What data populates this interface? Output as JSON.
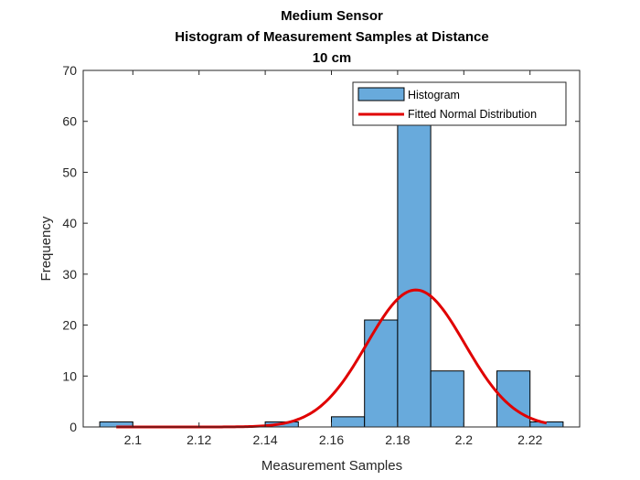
{
  "chart_data": {
    "type": "bar",
    "title": [
      "Medium Sensor",
      "Histogram of Measurement Samples at Distance",
      "10 cm"
    ],
    "xlabel": "Measurement Samples",
    "ylabel": "Frequency",
    "xlim": [
      2.085,
      2.235
    ],
    "ylim": [
      0,
      70
    ],
    "xticks": [
      2.1,
      2.12,
      2.14,
      2.16,
      2.18,
      2.2,
      2.22
    ],
    "xtick_labels": [
      "2.1",
      "2.12",
      "2.14",
      "2.16",
      "2.18",
      "2.2",
      "2.22"
    ],
    "yticks": [
      0,
      10,
      20,
      30,
      40,
      50,
      60,
      70
    ],
    "ytick_labels": [
      "0",
      "10",
      "20",
      "30",
      "40",
      "50",
      "60",
      "70"
    ],
    "bin_width": 0.01,
    "histogram": {
      "name": "Histogram",
      "color": "#68AADC",
      "bins": [
        {
          "start": 2.09,
          "end": 2.1,
          "count": 1
        },
        {
          "start": 2.1,
          "end": 2.11,
          "count": 0
        },
        {
          "start": 2.11,
          "end": 2.12,
          "count": 0
        },
        {
          "start": 2.12,
          "end": 2.13,
          "count": 0
        },
        {
          "start": 2.13,
          "end": 2.14,
          "count": 0
        },
        {
          "start": 2.14,
          "end": 2.15,
          "count": 1
        },
        {
          "start": 2.15,
          "end": 2.16,
          "count": 0
        },
        {
          "start": 2.16,
          "end": 2.17,
          "count": 2
        },
        {
          "start": 2.17,
          "end": 2.18,
          "count": 21
        },
        {
          "start": 2.18,
          "end": 2.19,
          "count": 60
        },
        {
          "start": 2.19,
          "end": 2.2,
          "count": 11
        },
        {
          "start": 2.2,
          "end": 2.21,
          "count": 0
        },
        {
          "start": 2.21,
          "end": 2.22,
          "count": 11
        },
        {
          "start": 2.22,
          "end": 2.23,
          "count": 1
        }
      ]
    },
    "fit": {
      "name": "Fitted Normal Distribution",
      "color": "#E00000",
      "distribution": "normal",
      "mean": 2.1855,
      "std": 0.0148,
      "peak": 26.9,
      "x_range": [
        2.095,
        2.225
      ]
    },
    "legend": {
      "placement": "top-right",
      "entries": [
        "Histogram",
        "Fitted Normal Distribution"
      ]
    },
    "grid": false
  }
}
